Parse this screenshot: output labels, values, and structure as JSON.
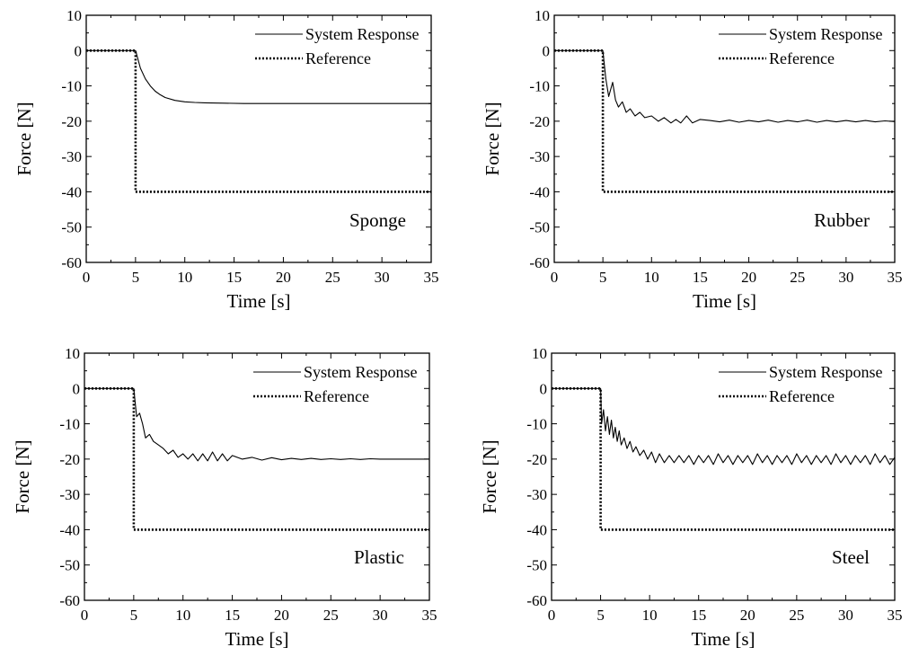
{
  "figure": {
    "background": "#ffffff",
    "ink": "#000000"
  },
  "chart_data": [
    {
      "type": "line",
      "annotation": "Sponge",
      "xlabel": "Time [s]",
      "ylabel": "Force [N]",
      "xlim": [
        0,
        35
      ],
      "ylim": [
        -60,
        10
      ],
      "xticks": [
        "0",
        "5",
        "10",
        "15",
        "20",
        "25",
        "30",
        "35"
      ],
      "yticks": [
        "10",
        "0",
        "-10",
        "-20",
        "-30",
        "-40",
        "-50",
        "-60"
      ],
      "grid": false,
      "legend_position": "top-right",
      "series": [
        {
          "name": "System Response",
          "style": "solid",
          "x": [
            0,
            5,
            5.2,
            5.5,
            6,
            6.5,
            7,
            7.5,
            8,
            9,
            10,
            11,
            12,
            14,
            16,
            20,
            25,
            30,
            35
          ],
          "y": [
            0,
            0,
            -2,
            -5,
            -8,
            -10,
            -11.5,
            -12.5,
            -13.3,
            -14.1,
            -14.5,
            -14.7,
            -14.8,
            -14.9,
            -15,
            -15,
            -15,
            -15,
            -15
          ]
        },
        {
          "name": "Reference",
          "style": "dotted",
          "x": [
            0,
            5,
            5,
            35
          ],
          "y": [
            0,
            0,
            -40,
            -40
          ]
        }
      ]
    },
    {
      "type": "line",
      "annotation": "Rubber",
      "xlabel": "Time [s]",
      "ylabel": "Force [N]",
      "xlim": [
        0,
        35
      ],
      "ylim": [
        -60,
        10
      ],
      "xticks": [
        "0",
        "5",
        "10",
        "15",
        "20",
        "25",
        "30",
        "35"
      ],
      "yticks": [
        "10",
        "0",
        "-10",
        "-20",
        "-30",
        "-40",
        "-50",
        "-60"
      ],
      "grid": false,
      "legend_position": "top-right",
      "series": [
        {
          "name": "System Response",
          "style": "solid",
          "x": [
            0,
            5,
            5.3,
            5.6,
            6,
            6.3,
            6.6,
            7,
            7.4,
            7.8,
            8.3,
            8.8,
            9.3,
            10,
            10.7,
            11.3,
            12,
            12.5,
            13,
            13.6,
            14.2,
            15,
            16,
            17,
            18,
            19,
            20,
            21,
            22,
            23,
            24,
            25,
            26,
            27,
            28,
            29,
            30,
            31,
            32,
            33,
            34,
            35
          ],
          "y": [
            0,
            0,
            -8,
            -13,
            -9,
            -14,
            -16,
            -14.5,
            -17.5,
            -16.5,
            -18.5,
            -17.5,
            -19,
            -18.5,
            -20,
            -19,
            -20.5,
            -19.5,
            -20.5,
            -18.5,
            -20.5,
            -19.5,
            -19.8,
            -20.2,
            -19.7,
            -20.3,
            -19.8,
            -20.2,
            -19.7,
            -20.3,
            -19.8,
            -20.2,
            -19.7,
            -20.3,
            -19.8,
            -20.2,
            -19.8,
            -20.2,
            -19.8,
            -20.2,
            -19.9,
            -20.1
          ]
        },
        {
          "name": "Reference",
          "style": "dotted",
          "x": [
            0,
            5,
            5,
            35
          ],
          "y": [
            0,
            0,
            -40,
            -40
          ]
        }
      ]
    },
    {
      "type": "line",
      "annotation": "Plastic",
      "xlabel": "Time [s]",
      "ylabel": "Force [N]",
      "xlim": [
        0,
        35
      ],
      "ylim": [
        -60,
        10
      ],
      "xticks": [
        "0",
        "5",
        "10",
        "15",
        "20",
        "25",
        "30",
        "35"
      ],
      "yticks": [
        "10",
        "0",
        "-10",
        "-20",
        "-30",
        "-40",
        "-50",
        "-60"
      ],
      "grid": false,
      "legend_position": "top-right",
      "series": [
        {
          "name": "System Response",
          "style": "solid",
          "x": [
            0,
            5,
            5.3,
            5.6,
            5.9,
            6.2,
            6.6,
            7,
            7.5,
            8,
            8.5,
            9,
            9.5,
            10,
            10.5,
            11,
            11.5,
            12,
            12.5,
            13,
            13.5,
            14,
            14.5,
            15,
            16,
            17,
            18,
            19,
            20,
            21,
            22,
            23,
            24,
            25,
            26,
            27,
            28,
            29,
            30,
            31,
            32,
            33,
            34,
            35
          ],
          "y": [
            0,
            0,
            -8,
            -7,
            -10,
            -14,
            -13,
            -15,
            -16,
            -17,
            -18.5,
            -17.5,
            -19.5,
            -18.5,
            -20,
            -18.5,
            -20.5,
            -18.5,
            -20.5,
            -18,
            -20.5,
            -18.5,
            -20.5,
            -19,
            -20,
            -19.5,
            -20.3,
            -19.6,
            -20.2,
            -19.8,
            -20.1,
            -19.8,
            -20.1,
            -19.9,
            -20.1,
            -19.9,
            -20.1,
            -19.9,
            -20,
            -20,
            -20,
            -20,
            -20,
            -20
          ]
        },
        {
          "name": "Reference",
          "style": "dotted",
          "x": [
            0,
            5,
            5,
            35
          ],
          "y": [
            0,
            0,
            -40,
            -40
          ]
        }
      ]
    },
    {
      "type": "line",
      "annotation": "Steel",
      "xlabel": "Time [s]",
      "ylabel": "Force [N]",
      "xlim": [
        0,
        35
      ],
      "ylim": [
        -60,
        10
      ],
      "xticks": [
        "0",
        "5",
        "10",
        "15",
        "20",
        "25",
        "30",
        "35"
      ],
      "yticks": [
        "10",
        "0",
        "-10",
        "-20",
        "-30",
        "-40",
        "-50",
        "-60"
      ],
      "grid": false,
      "legend_position": "top-right",
      "series": [
        {
          "name": "System Response",
          "style": "solid",
          "x": [
            0,
            5,
            5.1,
            5.3,
            5.5,
            5.7,
            5.9,
            6.1,
            6.3,
            6.5,
            6.7,
            6.9,
            7.1,
            7.4,
            7.7,
            8,
            8.3,
            8.6,
            9,
            9.4,
            9.8,
            10.2,
            10.6,
            11,
            11.5,
            12,
            12.5,
            13,
            13.5,
            14,
            14.5,
            15,
            15.5,
            16,
            16.5,
            17,
            17.5,
            18,
            18.5,
            19,
            19.5,
            20,
            20.5,
            21,
            21.5,
            22,
            22.5,
            23,
            23.5,
            24,
            24.5,
            25,
            25.5,
            26,
            26.5,
            27,
            27.5,
            28,
            28.5,
            29,
            29.5,
            30,
            30.5,
            31,
            31.5,
            32,
            32.5,
            33,
            33.5,
            34,
            34.5,
            35
          ],
          "y": [
            0,
            0,
            -10,
            -6,
            -12,
            -8,
            -13,
            -9,
            -14,
            -11,
            -15,
            -12,
            -16,
            -14,
            -17,
            -15,
            -18,
            -16.5,
            -19,
            -17.5,
            -20,
            -18,
            -21,
            -18.5,
            -21,
            -19,
            -21,
            -19,
            -21,
            -19,
            -21.5,
            -19,
            -21,
            -19,
            -21.5,
            -18.5,
            -21,
            -19,
            -21.5,
            -19,
            -21,
            -19,
            -21.5,
            -18.5,
            -21,
            -19,
            -21.5,
            -19,
            -21,
            -19,
            -21.5,
            -18.5,
            -21,
            -19,
            -21.5,
            -19,
            -21,
            -19,
            -21.5,
            -18.5,
            -21,
            -19,
            -21.5,
            -19,
            -21,
            -19,
            -21.5,
            -18.5,
            -21,
            -19,
            -21.5,
            -19.5
          ]
        },
        {
          "name": "Reference",
          "style": "dotted",
          "x": [
            0,
            5,
            5,
            35
          ],
          "y": [
            0,
            0,
            -40,
            -40
          ]
        }
      ]
    }
  ]
}
